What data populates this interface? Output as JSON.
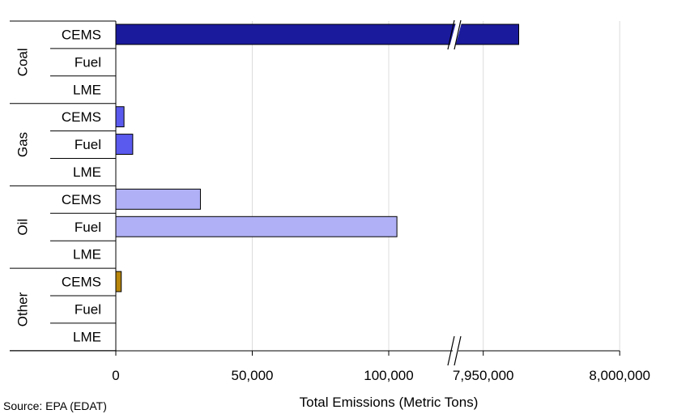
{
  "chart_data": {
    "type": "bar",
    "orientation": "horizontal",
    "title": "",
    "xlabel": "Total Emissions (Metric Tons)",
    "ylabel": "",
    "source": "Source: EPA (EDAT)",
    "axis_break": {
      "lower_max": 125000,
      "upper_min": 7940000
    },
    "x_ticks": [
      {
        "value": 0,
        "label": "0"
      },
      {
        "value": 50000,
        "label": "50,000"
      },
      {
        "value": 100000,
        "label": "100,000"
      },
      {
        "value": 7950000,
        "label": "7,950,000"
      },
      {
        "value": 8000000,
        "label": "8,000,000"
      }
    ],
    "grid": true,
    "legend": "none",
    "groups": [
      {
        "name": "Coal",
        "color": "#1a1a9c",
        "bars": [
          {
            "label": "CEMS",
            "value": 7963000
          },
          {
            "label": "Fuel",
            "value": 0
          },
          {
            "label": "LME",
            "value": 0
          }
        ]
      },
      {
        "name": "Gas",
        "color": "#5a5aee",
        "bars": [
          {
            "label": "CEMS",
            "value": 3000
          },
          {
            "label": "Fuel",
            "value": 6200
          },
          {
            "label": "LME",
            "value": 0
          }
        ]
      },
      {
        "name": "Oil",
        "color": "#b0b0f7",
        "bars": [
          {
            "label": "CEMS",
            "value": 31000
          },
          {
            "label": "Fuel",
            "value": 103000
          },
          {
            "label": "LME",
            "value": 0
          }
        ]
      },
      {
        "name": "Other",
        "color": "#b8860b",
        "bars": [
          {
            "label": "CEMS",
            "value": 2000
          },
          {
            "label": "Fuel",
            "value": 0
          },
          {
            "label": "LME",
            "value": 0
          }
        ]
      }
    ]
  }
}
